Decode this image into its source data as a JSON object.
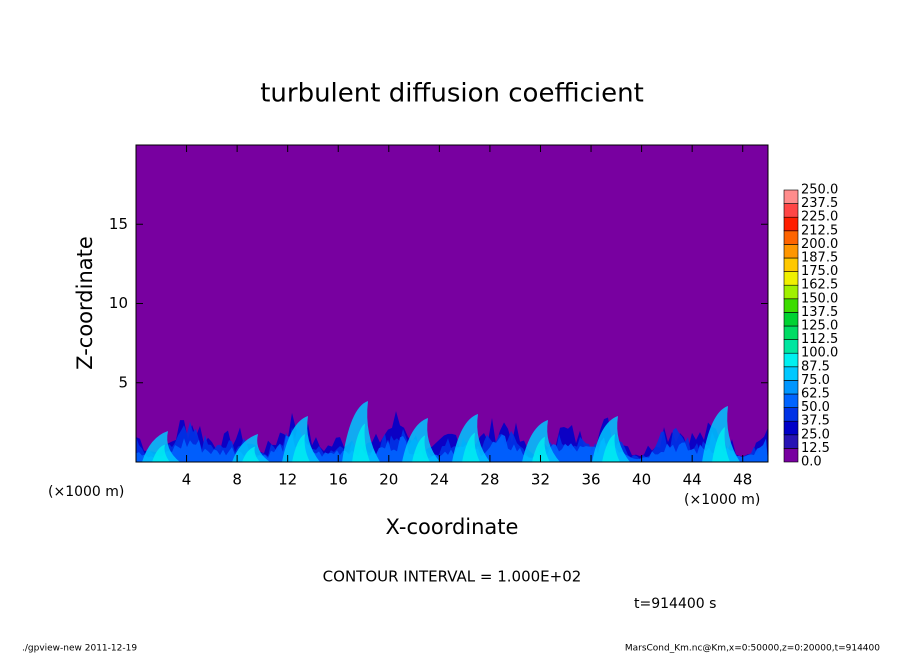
{
  "chart_data": {
    "type": "contour",
    "title": "turbulent diffusion coefficient",
    "xlabel": "X-coordinate",
    "ylabel": "Z-coordinate",
    "xunit": "(×1000 m)",
    "yunit": "(×1000 m)",
    "xlim": [
      0,
      50
    ],
    "ylim": [
      0,
      20
    ],
    "xticks": [
      4,
      8,
      12,
      16,
      20,
      24,
      28,
      32,
      36,
      40,
      44,
      48
    ],
    "yticks": [
      5,
      10,
      15
    ],
    "colorbar": {
      "levels": [
        {
          "value": 0,
          "label": "0.0"
        },
        {
          "value": 12.5,
          "label": "12.5"
        },
        {
          "value": 25,
          "label": "25.0"
        },
        {
          "value": 37.5,
          "label": "37.5"
        },
        {
          "value": 50,
          "label": "50.0"
        },
        {
          "value": 62.5,
          "label": "62.5"
        },
        {
          "value": 75,
          "label": "75.0"
        },
        {
          "value": 87.5,
          "label": "87.5"
        },
        {
          "value": 100,
          "label": "100.0"
        },
        {
          "value": 112.5,
          "label": "112.5"
        },
        {
          "value": 125,
          "label": "125.0"
        },
        {
          "value": 137.5,
          "label": "137.5"
        },
        {
          "value": 150,
          "label": "150.0"
        },
        {
          "value": 162.5,
          "label": "162.5"
        },
        {
          "value": 175,
          "label": "175.0"
        },
        {
          "value": 187.5,
          "label": "187.5"
        },
        {
          "value": 200,
          "label": "200.0"
        },
        {
          "value": 212.5,
          "label": "212.5"
        },
        {
          "value": 225,
          "label": "225.0"
        },
        {
          "value": 237.5,
          "label": "237.5"
        },
        {
          "value": 250,
          "label": "250.0"
        }
      ],
      "colors": [
        "#7800a0",
        "#2814b4",
        "#0000c8",
        "#0032e6",
        "#0064ff",
        "#0096ff",
        "#00c8ff",
        "#00f0f0",
        "#00e6a0",
        "#00dc64",
        "#00d232",
        "#3cdc00",
        "#a0f000",
        "#f0f000",
        "#ffc800",
        "#ff9600",
        "#ff6400",
        "#ff1e00",
        "#ff4646",
        "#ff8c8c"
      ]
    },
    "contour_interval": "CONTOUR INTERVAL = 1.000E+02",
    "time_label": "t=914400 s",
    "footer_left": "./gpview-new   2011-12-19",
    "footer_right": "MarsCond_Km.nc@Km,x=0:50000,z=0:20000,t=914400"
  }
}
